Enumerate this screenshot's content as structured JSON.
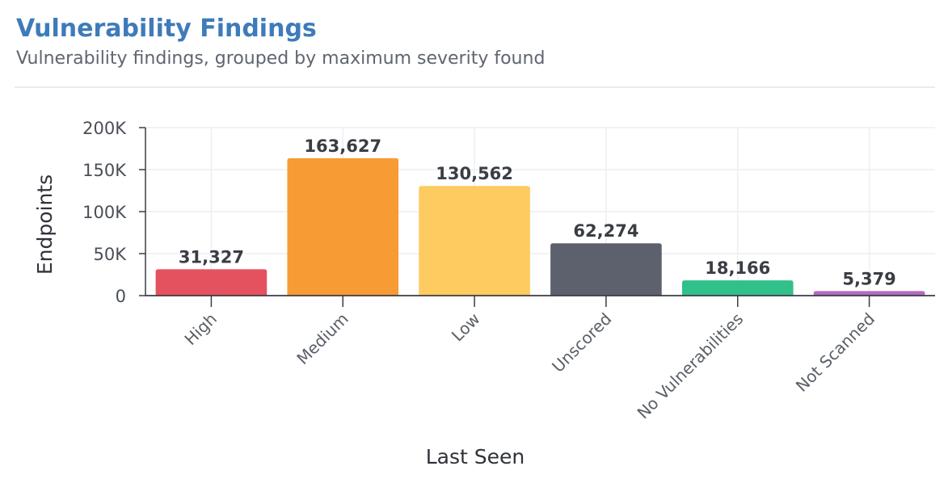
{
  "header": {
    "title": "Vulnerability Findings",
    "subtitle": "Vulnerability findings, grouped by maximum severity found"
  },
  "chart_data": {
    "type": "bar",
    "categories": [
      "High",
      "Medium",
      "Low",
      "Unscored",
      "No Vulnerabilities",
      "Not Scanned"
    ],
    "values": [
      31327,
      163627,
      130562,
      62274,
      18166,
      5379
    ],
    "data_labels": [
      "31,327",
      "163,627",
      "130,562",
      "62,274",
      "18,166",
      "5,379"
    ],
    "colors": [
      "#e3525e",
      "#f79b34",
      "#fdcb5f",
      "#5d606d",
      "#31c08a",
      "#b36ac4"
    ],
    "xlabel": "Last Seen",
    "ylabel": "Endpoints",
    "ylim": [
      0,
      200000
    ],
    "yticks": [
      0,
      50000,
      100000,
      150000,
      200000
    ],
    "ytick_labels": [
      "0",
      "50K",
      "100K",
      "150K",
      "200K"
    ],
    "grid": true,
    "legend": "none"
  }
}
